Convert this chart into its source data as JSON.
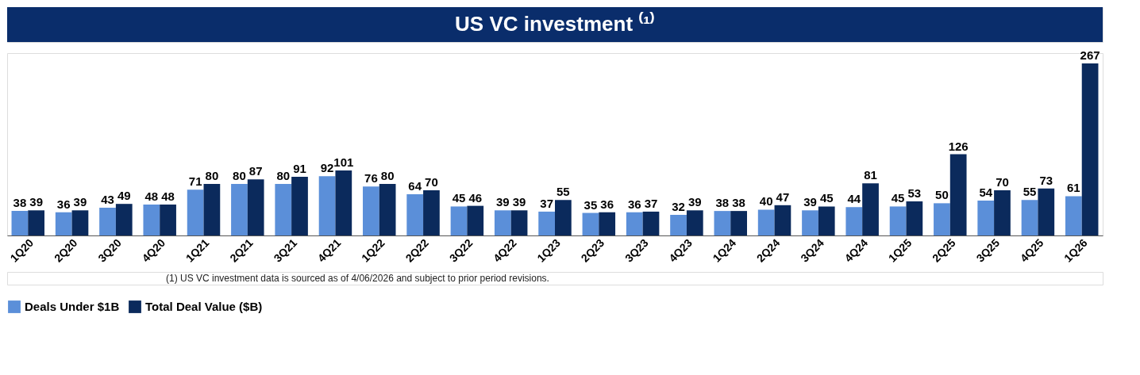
{
  "chart_data": {
    "type": "bar",
    "title": "US VC investment ⁽¹⁾",
    "categories": [
      "1Q20",
      "2Q20",
      "3Q20",
      "4Q20",
      "1Q21",
      "2Q21",
      "3Q21",
      "4Q21",
      "1Q22",
      "2Q22",
      "3Q22",
      "4Q22",
      "1Q23",
      "2Q23",
      "3Q23",
      "4Q23",
      "1Q24",
      "2Q24",
      "3Q24",
      "4Q24",
      "1Q25",
      "2Q25",
      "3Q25",
      "4Q25",
      "1Q26"
    ],
    "series": [
      {
        "name": "Deals Under $1B",
        "color": "#5b8fd9",
        "values": [
          38,
          36,
          43,
          48,
          71,
          80,
          80,
          92,
          76,
          64,
          45,
          39,
          37,
          35,
          36,
          32,
          38,
          40,
          39,
          44,
          45,
          50,
          54,
          55,
          61
        ]
      },
      {
        "name": "Total Deal Value ($B)",
        "color": "#0b2a5c",
        "values": [
          39,
          39,
          49,
          48,
          80,
          87,
          91,
          101,
          80,
          70,
          46,
          39,
          55,
          36,
          37,
          39,
          38,
          47,
          45,
          81,
          53,
          126,
          70,
          73,
          267
        ]
      }
    ],
    "data_labels": true,
    "legend": "bottom",
    "tick_labels": "x",
    "annotations": [
      "(1) US VC investment data is sourced as of 4/06/2026 and subject to prior period revisions."
    ]
  }
}
